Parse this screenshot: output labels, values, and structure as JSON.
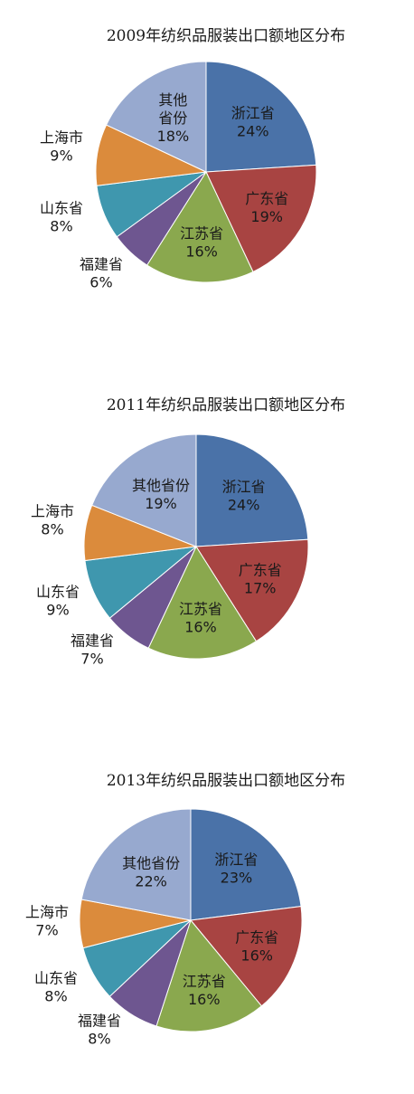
{
  "chart_data": [
    {
      "type": "pie",
      "title": "2009年纺织品服装出口额地区分布",
      "slices": [
        {
          "name": "浙江省",
          "value": 24,
          "label": "24%"
        },
        {
          "name": "广东省",
          "value": 19,
          "label": "19%"
        },
        {
          "name": "江苏省",
          "value": 16,
          "label": "16%"
        },
        {
          "name": "福建省",
          "value": 6,
          "label": "6%"
        },
        {
          "name": "山东省",
          "value": 8,
          "label": "8%"
        },
        {
          "name": "上海市",
          "value": 9,
          "label": "9%"
        },
        {
          "name": "其他省份",
          "lines": [
            "其他",
            "省份"
          ],
          "value": 18,
          "label": "18%"
        }
      ]
    },
    {
      "type": "pie",
      "title": "2011年纺织品服装出口额地区分布",
      "slices": [
        {
          "name": "浙江省",
          "value": 24,
          "label": "24%"
        },
        {
          "name": "广东省",
          "value": 17,
          "label": "17%"
        },
        {
          "name": "江苏省",
          "value": 16,
          "label": "16%"
        },
        {
          "name": "福建省",
          "value": 7,
          "label": "7%"
        },
        {
          "name": "山东省",
          "value": 9,
          "label": "9%"
        },
        {
          "name": "上海市",
          "value": 8,
          "label": "8%"
        },
        {
          "name": "其他省份",
          "value": 19,
          "label": "19%"
        }
      ]
    },
    {
      "type": "pie",
      "title": "2013年纺织品服装出口额地区分布",
      "slices": [
        {
          "name": "浙江省",
          "value": 23,
          "label": "23%"
        },
        {
          "name": "广东省",
          "value": 16,
          "label": "16%"
        },
        {
          "name": "江苏省",
          "value": 16,
          "label": "16%"
        },
        {
          "name": "福建省",
          "value": 8,
          "label": "8%"
        },
        {
          "name": "山东省",
          "value": 8,
          "label": "8%"
        },
        {
          "name": "上海市",
          "value": 7,
          "label": "7%"
        },
        {
          "name": "其他省份",
          "value": 22,
          "label": "22%"
        }
      ]
    }
  ],
  "colors": {
    "浙江省": "#4a72a8",
    "广东省": "#a84442",
    "江苏省": "#8aa84e",
    "福建省": "#6e5690",
    "山东省": "#3f97ae",
    "上海市": "#db8b3c",
    "其他省份": "#97a9cf"
  }
}
